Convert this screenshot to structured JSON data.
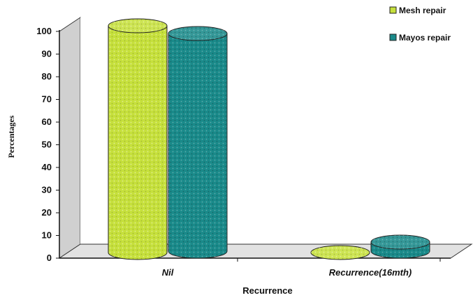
{
  "chart_data": {
    "type": "bar",
    "style": "3d-cylinder",
    "categories": [
      "Nil",
      "Recurrence(16mth)"
    ],
    "series": [
      {
        "name": "Mesh repair",
        "values": [
          100,
          0
        ],
        "color": "#c6e03c"
      },
      {
        "name": "Mayos repair",
        "values": [
          96,
          4
        ],
        "color": "#1a8a8a"
      }
    ],
    "xlabel": "Recurrence",
    "ylabel": "Percentages",
    "ylim": [
      0,
      100
    ],
    "yticks": [
      0,
      10,
      20,
      30,
      40,
      50,
      60,
      70,
      80,
      90,
      100
    ],
    "grid": false,
    "legend_position": "top-right",
    "wall_color": "#e2e2e2"
  }
}
